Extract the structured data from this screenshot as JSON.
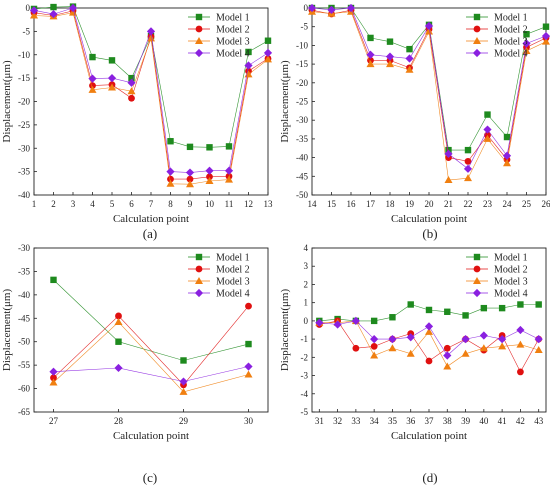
{
  "figure_colors": {
    "Model 1": "#1e8a1e",
    "Model 2": "#e01010",
    "Model 3": "#f07f10",
    "Model 4": "#8a20e0"
  },
  "chart_data": [
    {
      "panel_label": "(a)",
      "type": "line",
      "xlabel": "Calculation point",
      "ylabel": "Displacement(μm)",
      "x": [
        1,
        2,
        3,
        4,
        5,
        6,
        7,
        8,
        9,
        10,
        11,
        12,
        13
      ],
      "xlim": [
        1,
        13
      ],
      "ylim": [
        -40,
        0
      ],
      "yticks": [
        0,
        -5,
        -10,
        -15,
        -20,
        -25,
        -30,
        -35,
        -40
      ],
      "legend_position": "top-right",
      "series": [
        {
          "name": "Model 1",
          "marker": "square",
          "values": [
            -0.2,
            0.2,
            0.3,
            -10.5,
            -11.2,
            -15.0,
            -6.0,
            -28.5,
            -29.7,
            -29.8,
            -29.6,
            -9.4,
            -7.0
          ]
        },
        {
          "name": "Model 2",
          "marker": "circle",
          "values": [
            -1.0,
            -1.6,
            -0.6,
            -16.6,
            -16.4,
            -19.3,
            -6.1,
            -36.6,
            -36.6,
            -36.1,
            -36.0,
            -13.5,
            -10.8
          ]
        },
        {
          "name": "Model 3",
          "marker": "triangle",
          "values": [
            -1.6,
            -1.8,
            -1.0,
            -17.5,
            -17.0,
            -17.8,
            -6.5,
            -37.6,
            -37.7,
            -37.0,
            -36.7,
            -14.2,
            -11.0
          ]
        },
        {
          "name": "Model 4",
          "marker": "diamond",
          "values": [
            -0.5,
            -1.3,
            0.0,
            -15.1,
            -15.0,
            -16.0,
            -5.0,
            -35.0,
            -35.2,
            -34.8,
            -34.8,
            -12.3,
            -9.6
          ]
        }
      ]
    },
    {
      "panel_label": "(b)",
      "type": "line",
      "xlabel": "Calculation point",
      "ylabel": "Displacement(μm)",
      "x": [
        14,
        15,
        16,
        17,
        18,
        19,
        20,
        21,
        22,
        23,
        24,
        25,
        26
      ],
      "xlim": [
        14,
        26
      ],
      "ylim": [
        -50,
        0
      ],
      "yticks": [
        0,
        -5,
        -10,
        -15,
        -20,
        -25,
        -30,
        -35,
        -40,
        -45,
        -50
      ],
      "legend_position": "top-right",
      "series": [
        {
          "name": "Model 1",
          "marker": "square",
          "values": [
            0.0,
            0.0,
            0.0,
            -8.0,
            -9.0,
            -11.0,
            -4.5,
            -38.0,
            -38.0,
            -28.5,
            -34.5,
            -7.0,
            -5.0
          ]
        },
        {
          "name": "Model 2",
          "marker": "circle",
          "values": [
            -0.6,
            -1.6,
            -0.6,
            -14.0,
            -14.0,
            -16.0,
            -5.7,
            -40.0,
            -41.0,
            -34.0,
            -40.5,
            -10.5,
            -8.0
          ]
        },
        {
          "name": "Model 3",
          "marker": "triangle",
          "values": [
            -1.0,
            -1.5,
            -1.0,
            -15.0,
            -15.0,
            -16.5,
            -6.3,
            -46.0,
            -45.5,
            -35.0,
            -41.5,
            -11.5,
            -9.0
          ]
        },
        {
          "name": "Model 4",
          "marker": "diamond",
          "values": [
            0.0,
            -0.5,
            0.0,
            -12.5,
            -13.0,
            -13.5,
            -4.8,
            -39.0,
            -43.0,
            -32.5,
            -39.5,
            -9.5,
            -7.5
          ]
        }
      ]
    },
    {
      "panel_label": "(c)",
      "type": "line",
      "xlabel": "Calculation point",
      "ylabel": "Displacement(μm)",
      "x": [
        27,
        28,
        29,
        30
      ],
      "xlim": [
        26.7,
        30.3
      ],
      "ylim": [
        -65,
        -30
      ],
      "yticks": [
        -30,
        -35,
        -40,
        -45,
        -50,
        -55,
        -60,
        -65
      ],
      "legend_position": "top-right",
      "series": [
        {
          "name": "Model 1",
          "marker": "square",
          "values": [
            -36.8,
            -50.0,
            -54.0,
            -50.5
          ]
        },
        {
          "name": "Model 2",
          "marker": "circle",
          "values": [
            -57.7,
            -44.5,
            -59.2,
            -42.4
          ]
        },
        {
          "name": "Model 3",
          "marker": "triangle",
          "values": [
            -58.7,
            -45.8,
            -60.7,
            -57.0
          ]
        },
        {
          "name": "Model 4",
          "marker": "diamond",
          "values": [
            -56.4,
            -55.6,
            -58.5,
            -55.3
          ]
        }
      ]
    },
    {
      "panel_label": "(d)",
      "type": "line",
      "xlabel": "Calculation point",
      "ylabel": "Displacement(μm)",
      "x": [
        31,
        32,
        33,
        34,
        35,
        36,
        37,
        38,
        39,
        40,
        41,
        42,
        43
      ],
      "xlim": [
        30.6,
        43.4
      ],
      "ylim": [
        -5,
        4
      ],
      "yticks": [
        4,
        3,
        2,
        1,
        0,
        -1,
        -2,
        -3,
        -4,
        -5
      ],
      "legend_position": "top-right",
      "series": [
        {
          "name": "Model 1",
          "marker": "square",
          "values": [
            0.0,
            0.1,
            0.0,
            0.0,
            0.2,
            0.9,
            0.6,
            0.5,
            0.3,
            0.7,
            0.7,
            0.9,
            0.9
          ]
        },
        {
          "name": "Model 2",
          "marker": "circle",
          "values": [
            -0.2,
            0.0,
            -1.5,
            -1.4,
            -1.0,
            -0.7,
            -2.2,
            -1.5,
            -1.0,
            -1.6,
            -0.8,
            -2.8,
            -1.0
          ]
        },
        {
          "name": "Model 3",
          "marker": "triangle",
          "values": [
            -0.1,
            -0.1,
            0.0,
            -1.9,
            -1.5,
            -1.8,
            -0.6,
            -2.5,
            -1.8,
            -1.5,
            -1.4,
            -1.3,
            -1.6
          ]
        },
        {
          "name": "Model 4",
          "marker": "diamond",
          "values": [
            -0.1,
            -0.2,
            0.0,
            -1.0,
            -1.0,
            -0.9,
            -0.3,
            -1.9,
            -1.0,
            -0.8,
            -1.0,
            -0.5,
            -1.0
          ]
        }
      ]
    }
  ]
}
